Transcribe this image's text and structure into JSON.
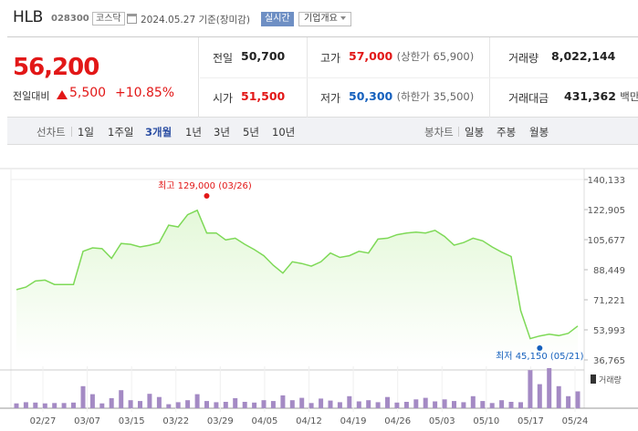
{
  "header": {
    "name": "HLB",
    "code": "028300",
    "market": "코스닥",
    "date": "2024.05.27 기준(장미감)",
    "realtime": "실시간",
    "company_info": "기업개요"
  },
  "quote": {
    "price": "56,200",
    "change_label": "전일대비",
    "change": "5,500",
    "change_pct": "+10.85%",
    "prev_close_label": "전일",
    "prev_close": "50,700",
    "open_label": "시가",
    "open": "51,500",
    "high_label": "고가",
    "high": "57,000",
    "upper_limit": "(상한가 65,900)",
    "low_label": "저가",
    "low": "50,300",
    "lower_limit": "(하한가 35,500)",
    "volume_label": "거래량",
    "volume": "8,022,144",
    "amount_label": "거래대금",
    "amount": "431,362",
    "amount_unit": "백만"
  },
  "periods": {
    "line_label": "선차트",
    "line": [
      "1일",
      "1주일",
      "3개월",
      "1년",
      "3년",
      "5년",
      "10년"
    ],
    "selected": "3개월",
    "candle_label": "봉차트",
    "candle": [
      "일봉",
      "주봉",
      "월봉"
    ]
  },
  "colors": {
    "up": "#e21717",
    "down": "#1560bd",
    "line": "#7ed957",
    "area": "#e4f8d9",
    "bar": "#a48ac4"
  },
  "chart_data": {
    "type": "area",
    "y_ticks": [
      "140,133",
      "122,905",
      "105,677",
      "88,449",
      "71,221",
      "53,993",
      "36,765"
    ],
    "ylim": [
      36765,
      140133
    ],
    "x_labels": [
      "02/27",
      "03/07",
      "03/15",
      "03/22",
      "03/29",
      "04/05",
      "04/12",
      "04/19",
      "04/26",
      "05/03",
      "05/10",
      "05/17",
      "05/24"
    ],
    "max_label": "최고 129,000 (03/26)",
    "min_label": "최저 45,150 (05/21)",
    "volume_label": "거래량",
    "prices": [
      77000,
      78500,
      82000,
      82500,
      80000,
      80000,
      80000,
      99000,
      101000,
      100500,
      95000,
      103500,
      103000,
      101500,
      102500,
      104000,
      114000,
      113000,
      120000,
      122500,
      109500,
      109500,
      105500,
      106500,
      103000,
      100000,
      96500,
      91000,
      86500,
      93000,
      92000,
      90500,
      93000,
      98000,
      95500,
      96500,
      99000,
      98000,
      106000,
      106500,
      108500,
      109500,
      110000,
      109500,
      111000,
      107500,
      102500,
      104000,
      106500,
      105000,
      101500,
      98500,
      96000,
      65000,
      49000,
      50500,
      51500,
      50700,
      52000,
      56200
    ],
    "volumes": [
      0.12,
      0.15,
      0.14,
      0.12,
      0.13,
      0.13,
      0.14,
      0.55,
      0.35,
      0.12,
      0.25,
      0.45,
      0.2,
      0.18,
      0.36,
      0.28,
      0.1,
      0.15,
      0.2,
      0.35,
      0.18,
      0.15,
      0.16,
      0.25,
      0.16,
      0.14,
      0.2,
      0.18,
      0.32,
      0.2,
      0.26,
      0.13,
      0.24,
      0.19,
      0.15,
      0.3,
      0.17,
      0.2,
      0.15,
      0.28,
      0.14,
      0.16,
      0.22,
      0.26,
      0.17,
      0.22,
      0.18,
      0.15,
      0.3,
      0.18,
      0.13,
      0.2,
      0.16,
      0.15,
      0.95,
      0.6,
      1.0,
      0.55,
      0.3,
      0.42
    ]
  }
}
